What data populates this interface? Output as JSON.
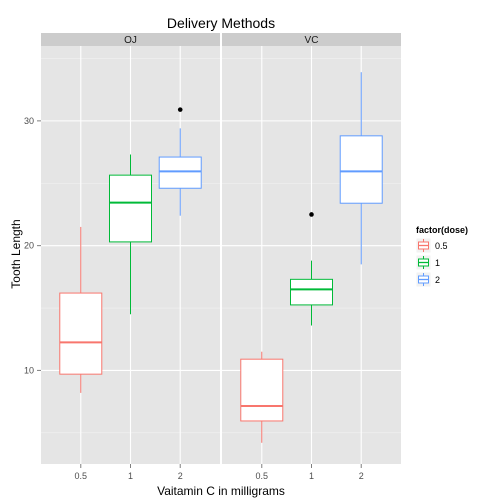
{
  "chart_data": {
    "type": "boxplot",
    "title": "Delivery Methods",
    "xlabel": "Vaitamin C in milligrams",
    "ylabel": "Tooth Length",
    "categories": [
      "0.5",
      "1",
      "2"
    ],
    "y_ticks": [
      10,
      20,
      30
    ],
    "ylim": [
      2.5,
      36
    ],
    "grid": true,
    "panels": [
      {
        "label": "OJ",
        "boxes": [
          {
            "x": "0.5",
            "dose": "0.5",
            "min": 8.2,
            "q1": 9.7,
            "median": 12.25,
            "q3": 16.2,
            "max": 21.5,
            "outliers": []
          },
          {
            "x": "1",
            "dose": "1",
            "min": 14.5,
            "q1": 20.3,
            "median": 23.45,
            "q3": 25.65,
            "max": 27.3,
            "outliers": []
          },
          {
            "x": "2",
            "dose": "2",
            "min": 22.4,
            "q1": 24.6,
            "median": 25.95,
            "q3": 27.1,
            "max": 29.4,
            "outliers": [
              30.9
            ]
          }
        ]
      },
      {
        "label": "VC",
        "boxes": [
          {
            "x": "0.5",
            "dose": "0.5",
            "min": 4.2,
            "q1": 5.95,
            "median": 7.15,
            "q3": 10.9,
            "max": 11.5,
            "outliers": []
          },
          {
            "x": "1",
            "dose": "1",
            "min": 13.6,
            "q1": 15.25,
            "median": 16.5,
            "q3": 17.3,
            "max": 18.8,
            "outliers": [
              22.5
            ]
          },
          {
            "x": "2",
            "dose": "2",
            "min": 18.5,
            "q1": 23.4,
            "median": 25.95,
            "q3": 28.8,
            "max": 33.9,
            "outliers": []
          }
        ]
      }
    ],
    "legend": {
      "title": "factor(dose)",
      "position": "right",
      "items": [
        {
          "label": "0.5",
          "color": "#F8766D"
        },
        {
          "label": "1",
          "color": "#00BA38"
        },
        {
          "label": "2",
          "color": "#619CFF"
        }
      ]
    }
  }
}
